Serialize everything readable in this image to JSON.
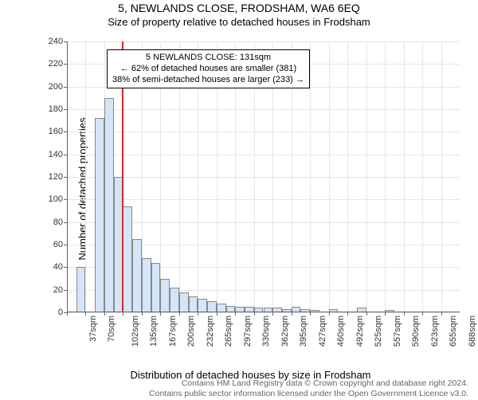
{
  "titles": {
    "line1": "5, NEWLANDS CLOSE, FRODSHAM, WA6 6EQ",
    "line1_fontsize": 14,
    "line2": "Size of property relative to detached houses in Frodsham",
    "line2_fontsize": 13
  },
  "chart": {
    "type": "histogram",
    "x_axis_title": "Distribution of detached houses by size in Frodsham",
    "y_axis_title": "Number of detached properties",
    "label_fontsize": 13,
    "tick_fontsize": 11,
    "ylim": [
      0,
      240
    ],
    "ytick_step": 20,
    "x_categories": [
      "37sqm",
      "70sqm",
      "102sqm",
      "135sqm",
      "167sqm",
      "200sqm",
      "232sqm",
      "265sqm",
      "297sqm",
      "330sqm",
      "362sqm",
      "395sqm",
      "427sqm",
      "460sqm",
      "492sqm",
      "525sqm",
      "557sqm",
      "590sqm",
      "623sqm",
      "655sqm",
      "688sqm"
    ],
    "bars": {
      "n_bins": 42,
      "values": [
        0,
        40,
        0,
        172,
        190,
        120,
        94,
        65,
        48,
        44,
        30,
        22,
        18,
        14,
        12,
        10,
        8,
        6,
        5,
        5,
        4,
        4,
        4,
        3,
        5,
        3,
        2,
        0,
        3,
        0,
        0,
        4,
        0,
        0,
        2,
        0,
        0,
        0,
        0,
        0,
        0,
        0
      ],
      "fill_color": "#d4e5f7",
      "border_color": "#888888",
      "highlight_bin_index": 5,
      "highlight_line_color": "#d42a2a"
    },
    "grid_color": "#e6e6e6",
    "background_color": "#ffffff",
    "annotation": {
      "line1": "5 NEWLANDS CLOSE: 131sqm",
      "line2": "← 62% of detached houses are smaller (381)",
      "line3": "38% of semi-detached houses are larger (233) →",
      "fontsize": 11
    }
  },
  "footer": {
    "line1": "Contains HM Land Registry data © Crown copyright and database right 2024.",
    "line2": "Contains public sector information licensed under the Open Government Licence v3.0.",
    "fontsize": 10.5,
    "color": "#666666"
  }
}
